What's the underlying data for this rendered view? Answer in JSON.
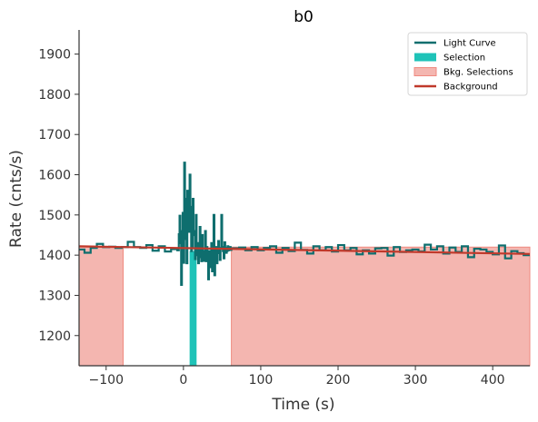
{
  "chart_data": {
    "type": "line",
    "title": "b0",
    "xlabel": "Time (s)",
    "ylabel": "Rate (cnts/s)",
    "xlim": [
      -135,
      448
    ],
    "ylim": [
      1125,
      1960
    ],
    "xticks": [
      -100,
      0,
      100,
      200,
      300,
      400
    ],
    "yticks": [
      1200,
      1300,
      1400,
      1500,
      1600,
      1700,
      1800,
      1900
    ],
    "grid": false,
    "legend_position": "top-right",
    "legend": [
      {
        "label": "Light Curve",
        "kind": "line",
        "color": "#0e6e6e"
      },
      {
        "label": "Selection",
        "kind": "patch",
        "color": "#1fc3b8"
      },
      {
        "label": "Bkg. Selections",
        "kind": "patch",
        "color": "#f4b6b0"
      },
      {
        "label": "Background",
        "kind": "line",
        "color": "#c0392b"
      }
    ],
    "colors": {
      "light_curve": "#0e6e6e",
      "selection": "#1fc3b8",
      "bkg_fill": "#f4b6b0",
      "bkg_edge": "#ef8a80",
      "background": "#c0392b"
    },
    "selection": [
      {
        "x0": 8,
        "x1": 17
      }
    ],
    "bkg_selections": [
      {
        "x0": -135,
        "x1": -78
      },
      {
        "x0": 62,
        "x1": 448
      }
    ],
    "background_line": {
      "x": [
        -135,
        448
      ],
      "y": [
        1422,
        1403
      ]
    },
    "light_curve": {
      "x": [
        -135,
        -128,
        -120,
        -112,
        -104,
        -96,
        -88,
        -80,
        -72,
        -64,
        -56,
        -48,
        -40,
        -32,
        -24,
        -16,
        -8,
        -6,
        -5,
        -4,
        -3,
        -2,
        -1,
        0,
        1,
        2,
        3,
        4,
        5,
        6,
        7,
        8,
        9,
        10,
        11,
        12,
        13,
        14,
        15,
        16,
        17,
        18,
        19,
        20,
        21,
        22,
        23,
        24,
        25,
        26,
        27,
        28,
        29,
        30,
        31,
        32,
        33,
        34,
        35,
        36,
        37,
        38,
        39,
        40,
        41,
        42,
        43,
        44,
        45,
        46,
        47,
        48,
        49,
        50,
        51,
        52,
        53,
        54,
        55,
        56,
        57,
        58,
        59,
        60,
        61,
        62,
        64,
        72,
        80,
        88,
        96,
        104,
        112,
        120,
        128,
        136,
        144,
        152,
        160,
        168,
        176,
        184,
        192,
        200,
        208,
        216,
        224,
        232,
        240,
        248,
        256,
        264,
        272,
        280,
        288,
        296,
        304,
        312,
        320,
        328,
        336,
        344,
        352,
        360,
        368,
        376,
        384,
        392,
        400,
        408,
        416,
        424,
        432,
        440
      ],
      "y": [
        1414,
        1406,
        1418,
        1428,
        1420,
        1421,
        1418,
        1420,
        1433,
        1420,
        1418,
        1425,
        1411,
        1422,
        1409,
        1415,
        1412,
        1452,
        1498,
        1430,
        1326,
        1460,
        1505,
        1381,
        1630,
        1440,
        1540,
        1380,
        1560,
        1510,
        1458,
        1600,
        1520,
        1410,
        1420,
        1540,
        1460,
        1450,
        1390,
        1500,
        1400,
        1430,
        1380,
        1425,
        1470,
        1395,
        1385,
        1450,
        1410,
        1386,
        1395,
        1460,
        1385,
        1420,
        1405,
        1340,
        1410,
        1370,
        1408,
        1430,
        1360,
        1415,
        1500,
        1350,
        1413,
        1420,
        1380,
        1405,
        1435,
        1412,
        1388,
        1418,
        1500,
        1420,
        1410,
        1392,
        1432,
        1418,
        1406,
        1410,
        1422,
        1412,
        1418,
        1420,
        1413,
        1416,
        1417,
        1419,
        1412,
        1420,
        1412,
        1418,
        1422,
        1406,
        1418,
        1410,
        1431,
        1413,
        1404,
        1422,
        1412,
        1420,
        1409,
        1425,
        1412,
        1418,
        1402,
        1412,
        1404,
        1417,
        1418,
        1399,
        1420,
        1408,
        1412,
        1414,
        1409,
        1426,
        1414,
        1422,
        1404,
        1419,
        1408,
        1422,
        1395,
        1416,
        1414,
        1408,
        1402,
        1424,
        1392,
        1410,
        1405,
        1400
      ]
    }
  }
}
